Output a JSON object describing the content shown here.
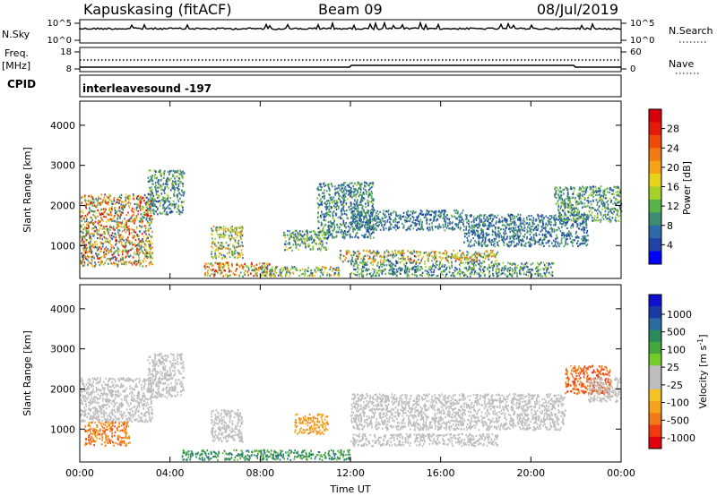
{
  "header": {
    "station": "Kapuskasing (fitACF)",
    "beam": "Beam 09",
    "date": "08/Jul/2019"
  },
  "noise_panel": {
    "left_label": "N.Sky",
    "left_ticks": [
      "10^5",
      "10^0"
    ],
    "right_label": "N.Search",
    "right_ticks": [
      "10^5",
      "10^0"
    ]
  },
  "freq_panel": {
    "left_label_1": "Freq.",
    "left_label_2": "[MHz]",
    "left_ticks": [
      "18",
      "8"
    ],
    "right_label": "Nave",
    "right_ticks": [
      "60",
      "0"
    ],
    "cpid_label": "CPID"
  },
  "cpid": {
    "text": "interleavesound -197"
  },
  "colors": {
    "power": [
      "#0000ff",
      "#1f44a6",
      "#2e6aa8",
      "#3f8b73",
      "#59b24a",
      "#a6cf2a",
      "#e6d41c",
      "#f5a41a",
      "#f27a12",
      "#ee4a0c",
      "#e41a0e",
      "#d6000b"
    ],
    "velocity": [
      "#e00010",
      "#f03a10",
      "#f2781a",
      "#f5a31c",
      "#f6c326",
      "#bdbdbd",
      "#bdbdbd",
      "#74cb2a",
      "#45a73e",
      "#2b8a5a",
      "#2c6aa2",
      "#1c3aa6",
      "#1010d0"
    ],
    "ground_scatter": "#bdbdbd"
  },
  "chart_data": [
    {
      "type": "heatmap",
      "panel": "power",
      "xlabel": "",
      "ylabel": "Slant Range [km]",
      "x_ticks": [
        "00:00",
        "04:00",
        "08:00",
        "12:00",
        "16:00",
        "20:00",
        "00:00"
      ],
      "xlim_hours": [
        0,
        24
      ],
      "ylim": [
        180,
        4600
      ],
      "y_ticks": [
        1000,
        2000,
        3000,
        4000
      ],
      "colorbar": {
        "label": "Power [dB]",
        "range": [
          0,
          32
        ],
        "ticks": [
          4,
          8,
          12,
          16,
          20,
          24,
          28
        ]
      },
      "regions": [
        {
          "t": [
            0.0,
            3.2
          ],
          "r": [
            500,
            2300
          ],
          "p": [
            4,
            30
          ]
        },
        {
          "t": [
            3.0,
            4.6
          ],
          "r": [
            1800,
            2900
          ],
          "p": [
            3,
            16
          ]
        },
        {
          "t": [
            5.8,
            7.2
          ],
          "r": [
            700,
            1500
          ],
          "p": [
            5,
            24
          ]
        },
        {
          "t": [
            5.5,
            8.5
          ],
          "r": [
            250,
            600
          ],
          "p": [
            8,
            30
          ]
        },
        {
          "t": [
            8.0,
            11.5
          ],
          "r": [
            250,
            500
          ],
          "p": [
            4,
            24
          ]
        },
        {
          "t": [
            9.0,
            11.0
          ],
          "r": [
            900,
            1400
          ],
          "p": [
            4,
            18
          ]
        },
        {
          "t": [
            10.5,
            13.0
          ],
          "r": [
            1200,
            2600
          ],
          "p": [
            3,
            14
          ]
        },
        {
          "t": [
            11.5,
            18.5
          ],
          "r": [
            600,
            900
          ],
          "p": [
            4,
            26
          ]
        },
        {
          "t": [
            12.0,
            17.0
          ],
          "r": [
            1400,
            1900
          ],
          "p": [
            3,
            12
          ]
        },
        {
          "t": [
            12.0,
            21.0
          ],
          "r": [
            250,
            600
          ],
          "p": [
            3,
            16
          ]
        },
        {
          "t": [
            17.0,
            22.5
          ],
          "r": [
            1000,
            1800
          ],
          "p": [
            3,
            12
          ]
        },
        {
          "t": [
            21.0,
            24.0
          ],
          "r": [
            1600,
            2500
          ],
          "p": [
            4,
            16
          ]
        }
      ]
    },
    {
      "type": "heatmap",
      "panel": "velocity",
      "xlabel": "Time UT",
      "ylabel": "Slant Range [km]",
      "x_ticks": [
        "00:00",
        "04:00",
        "08:00",
        "12:00",
        "16:00",
        "20:00",
        "00:00"
      ],
      "xlim_hours": [
        0,
        24
      ],
      "ylim": [
        180,
        4600
      ],
      "y_ticks": [
        1000,
        2000,
        3000,
        4000
      ],
      "colorbar": {
        "label": "Velocity [m s^-1]",
        "ticks": [
          "1000",
          "500",
          "100",
          "25",
          "-25",
          "-100",
          "-500",
          "-1000"
        ]
      },
      "regions": [
        {
          "t": [
            0.0,
            3.2
          ],
          "r": [
            1200,
            2300
          ],
          "v": [
            -25,
            25
          ]
        },
        {
          "t": [
            0.2,
            2.2
          ],
          "r": [
            600,
            1200
          ],
          "v": [
            -600,
            -100
          ]
        },
        {
          "t": [
            3.0,
            4.6
          ],
          "r": [
            1800,
            2900
          ],
          "v": [
            -25,
            25
          ]
        },
        {
          "t": [
            5.8,
            7.2
          ],
          "r": [
            700,
            1500
          ],
          "v": [
            -25,
            25
          ]
        },
        {
          "t": [
            4.5,
            12.0
          ],
          "r": [
            250,
            500
          ],
          "v": [
            25,
            300
          ]
        },
        {
          "t": [
            9.5,
            11.0
          ],
          "r": [
            900,
            1400
          ],
          "v": [
            -300,
            -100
          ]
        },
        {
          "t": [
            12.0,
            18.5
          ],
          "r": [
            600,
            900
          ],
          "v": [
            -25,
            25
          ]
        },
        {
          "t": [
            12.0,
            21.5
          ],
          "r": [
            1000,
            1900
          ],
          "v": [
            -25,
            25
          ]
        },
        {
          "t": [
            21.5,
            23.5
          ],
          "r": [
            1900,
            2600
          ],
          "v": [
            -700,
            -200
          ]
        },
        {
          "t": [
            22.5,
            24.0
          ],
          "r": [
            1700,
            2300
          ],
          "v": [
            -25,
            25
          ]
        }
      ]
    }
  ]
}
